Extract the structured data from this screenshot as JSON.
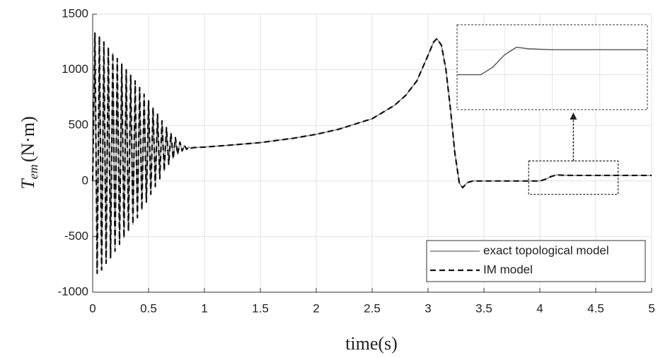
{
  "chart_data": [
    {
      "type": "line",
      "xlabel": "time(s)",
      "ylabel": "T",
      "ylabel_sub": "em",
      "ylabel_unit": "(N·m)",
      "x": [
        0,
        0.02,
        0.04,
        0.06,
        0.08,
        0.1,
        0.12,
        0.14,
        0.16,
        0.18,
        0.2,
        0.22,
        0.24,
        0.26,
        0.28,
        0.3,
        0.32,
        0.34,
        0.36,
        0.38,
        0.4,
        0.42,
        0.44,
        0.46,
        0.48,
        0.5,
        0.52,
        0.54,
        0.56,
        0.58,
        0.6,
        0.62,
        0.64,
        0.66,
        0.68,
        0.7,
        0.72,
        0.74,
        0.76,
        0.78,
        0.8,
        0.82,
        0.84,
        0.86,
        0.88,
        0.9,
        1.0,
        1.2,
        1.5,
        1.8,
        2.0,
        2.2,
        2.5,
        2.7,
        2.8,
        2.9,
        3.0,
        3.05,
        3.08,
        3.12,
        3.16,
        3.2,
        3.24,
        3.28,
        3.31,
        3.35,
        3.4,
        3.6,
        3.8,
        4.0,
        4.05,
        4.1,
        4.15,
        4.2,
        4.3,
        4.5,
        5.0
      ],
      "series": [
        {
          "name": "exact topological model",
          "color": "#808080",
          "dash": false,
          "values": [
            0,
            1330,
            -830,
            1300,
            -800,
            1250,
            -740,
            1200,
            -690,
            1150,
            -630,
            1100,
            -570,
            1050,
            -510,
            1000,
            -450,
            950,
            -390,
            900,
            -330,
            840,
            -260,
            780,
            -190,
            720,
            -120,
            660,
            -50,
            600,
            20,
            540,
            90,
            480,
            150,
            430,
            200,
            390,
            240,
            350,
            270,
            320,
            285,
            305,
            295,
            300,
            305,
            320,
            345,
            385,
            420,
            465,
            560,
            680,
            770,
            900,
            1130,
            1250,
            1280,
            1220,
            1000,
            650,
            250,
            -20,
            -60,
            -15,
            0,
            0,
            0,
            0,
            15,
            40,
            55,
            52,
            50,
            50,
            50
          ]
        },
        {
          "name": "IM model",
          "color": "#111111",
          "dash": true,
          "values": [
            0,
            1330,
            -830,
            1300,
            -800,
            1250,
            -740,
            1200,
            -690,
            1150,
            -630,
            1100,
            -570,
            1050,
            -510,
            1000,
            -450,
            950,
            -390,
            900,
            -330,
            840,
            -260,
            780,
            -190,
            720,
            -120,
            660,
            -50,
            600,
            20,
            540,
            90,
            480,
            150,
            430,
            200,
            390,
            240,
            350,
            270,
            320,
            285,
            305,
            295,
            300,
            305,
            320,
            345,
            385,
            420,
            465,
            560,
            680,
            770,
            900,
            1130,
            1250,
            1280,
            1220,
            1000,
            650,
            250,
            -20,
            -60,
            -15,
            0,
            0,
            0,
            0,
            15,
            40,
            55,
            52,
            50,
            50,
            50
          ]
        }
      ],
      "xlim": [
        0,
        5
      ],
      "ylim": [
        -1000,
        1500
      ],
      "xticks": [
        0,
        0.5,
        1,
        1.5,
        2,
        2.5,
        3,
        3.5,
        4,
        4.5,
        5
      ],
      "yticks": [
        -1000,
        -500,
        0,
        500,
        1000,
        1500
      ],
      "grid": true,
      "legend": "lower right"
    },
    {
      "type": "line",
      "x": [
        3.9,
        4.0,
        4.05,
        4.1,
        4.15,
        4.2,
        4.3,
        4.5,
        4.7
      ],
      "series": [
        {
          "color": "#555555",
          "values": [
            0,
            0,
            15,
            40,
            55,
            52,
            50,
            50,
            50
          ]
        }
      ],
      "xlim": [
        3.9,
        4.7
      ],
      "ylim": [
        -70,
        100
      ],
      "xticks": [
        4.1,
        4.3,
        4.5
      ],
      "yticks": [
        0,
        50
      ],
      "grid": true
    }
  ]
}
